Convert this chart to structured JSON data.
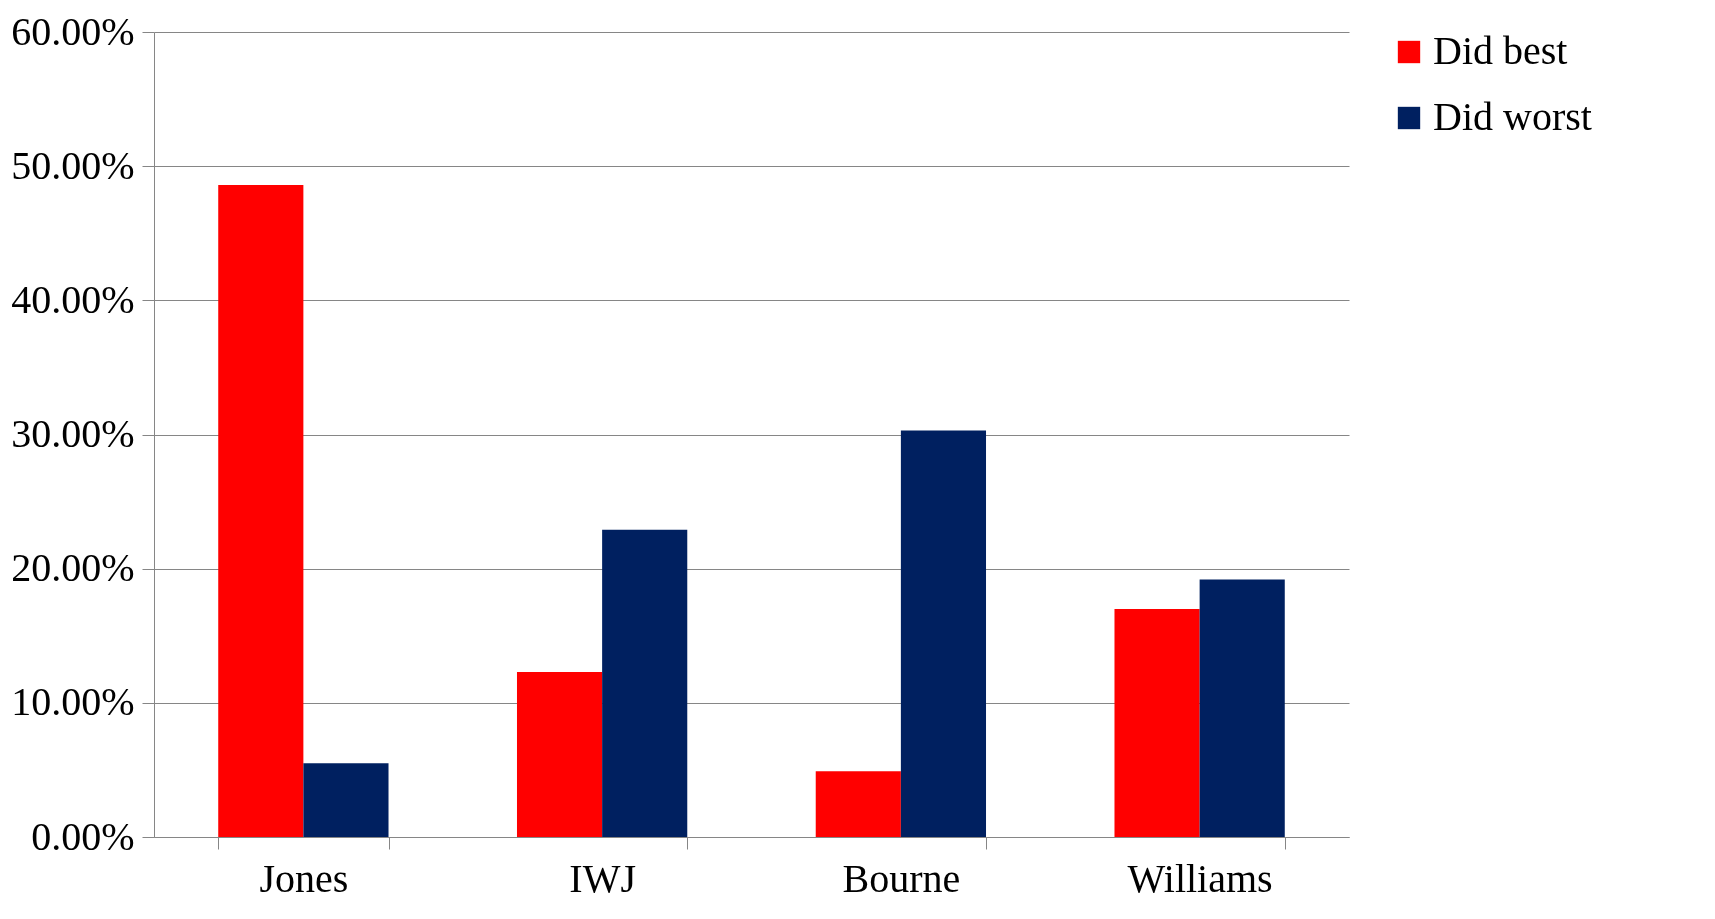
{
  "chart_data": {
    "type": "bar",
    "categories": [
      "Jones",
      "IWJ",
      "Bourne",
      "Williams"
    ],
    "series": [
      {
        "name": "Did best",
        "color": "#ff0000",
        "values": [
          48.6,
          12.3,
          4.9,
          17.0
        ]
      },
      {
        "name": "Did worst",
        "color": "#002060",
        "values": [
          5.5,
          22.9,
          30.3,
          19.2
        ]
      }
    ],
    "ylim": [
      0,
      60
    ],
    "yticks": [
      {
        "value": 0,
        "label": "0.00%"
      },
      {
        "value": 10,
        "label": "10.00%"
      },
      {
        "value": 20,
        "label": "20.00%"
      },
      {
        "value": 30,
        "label": "30.00%"
      },
      {
        "value": 40,
        "label": "40.00%"
      },
      {
        "value": 50,
        "label": "50.00%"
      },
      {
        "value": 60,
        "label": "60.00%"
      }
    ],
    "grid": "y",
    "legend": "right"
  }
}
